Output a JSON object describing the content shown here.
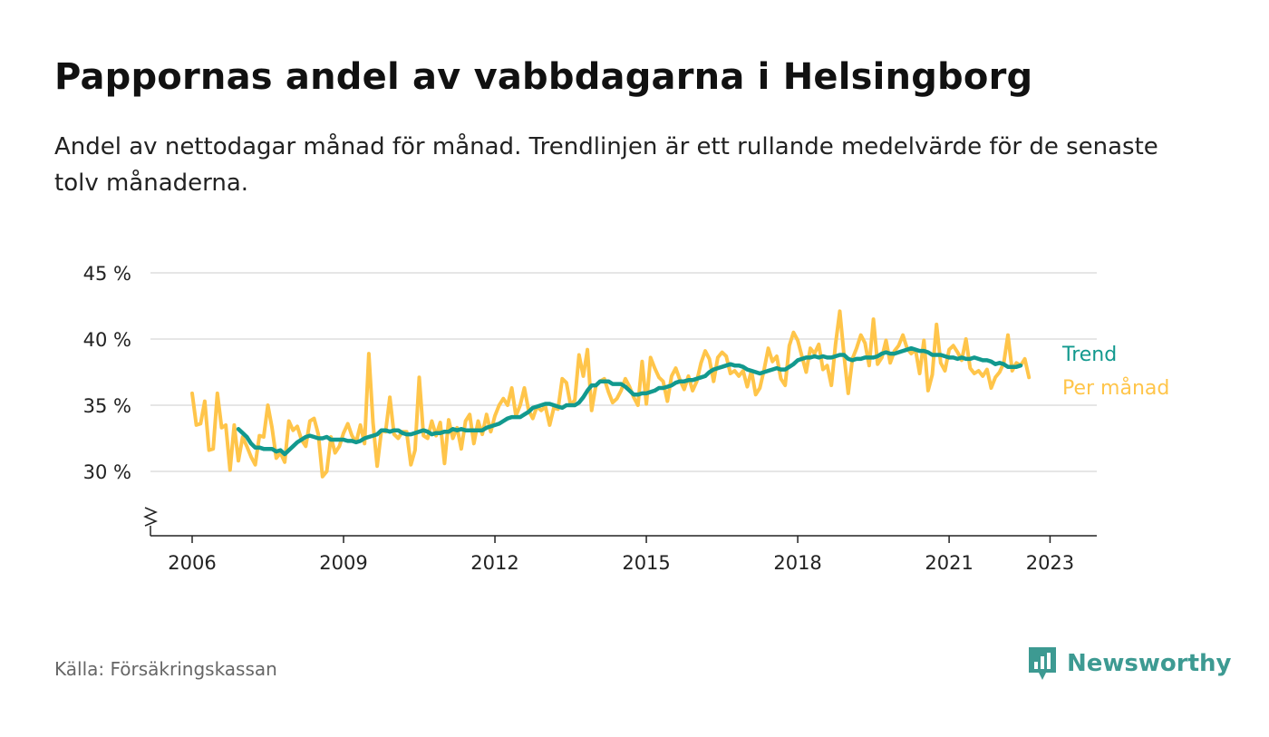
{
  "title": "Pappornas andel av vabbdagarna i Helsingborg",
  "subtitle": "Andel av nettodagar månad för månad. Trendlinjen är ett rullande medelvärde för de senaste tolv månaderna.",
  "source": "Källa: Försäkringskassan",
  "logo_text": "Newsworthy",
  "colors": {
    "trend": "#12998e",
    "monthly": "#ffc54a",
    "grid": "#dddddd",
    "axis": "#222222",
    "logo": "#3d9a92"
  },
  "chart_data": {
    "type": "line",
    "x_start": "2006-01",
    "x_end": "2023-05",
    "x_ticks": [
      "2006",
      "2009",
      "2012",
      "2015",
      "2018",
      "2021",
      "2023"
    ],
    "y_ticks": [
      "30 %",
      "35 %",
      "40 %",
      "45 %"
    ],
    "ylim": [
      25,
      45
    ],
    "y_axis_break": true,
    "grid": true,
    "legend": "right-end labels",
    "series": [
      {
        "name": "Per månad",
        "color": "#ffc54a",
        "values": [
          35.9,
          33.5,
          33.6,
          35.3,
          31.6,
          31.7,
          35.9,
          33.3,
          33.5,
          30.1,
          33.5,
          30.8,
          32.6,
          31.9,
          31.1,
          30.5,
          32.7,
          32.6,
          35.0,
          33.3,
          31.0,
          31.4,
          30.7,
          33.8,
          33.1,
          33.4,
          32.4,
          31.9,
          33.8,
          34.0,
          32.8,
          29.6,
          30.0,
          32.6,
          31.4,
          31.9,
          32.9,
          33.6,
          32.7,
          32.2,
          33.5,
          32.1,
          38.9,
          33.7,
          30.4,
          33.1,
          33.0,
          35.6,
          32.8,
          32.5,
          33.0,
          33.0,
          30.5,
          31.6,
          37.1,
          32.7,
          32.5,
          33.8,
          32.7,
          33.7,
          30.6,
          33.9,
          32.5,
          33.3,
          31.7,
          33.8,
          34.3,
          32.1,
          33.8,
          32.8,
          34.3,
          33.0,
          34.2,
          35.0,
          35.5,
          35.0,
          36.3,
          34.2,
          35.0,
          36.3,
          34.6,
          34.0,
          34.9,
          34.6,
          34.9,
          33.5,
          34.8,
          34.7,
          37.0,
          36.7,
          35.0,
          35.4,
          38.8,
          37.2,
          39.2,
          34.6,
          36.5,
          36.8,
          37.0,
          36.0,
          35.2,
          35.5,
          36.1,
          37.0,
          36.4,
          35.6,
          35.0,
          38.3,
          35.1,
          38.6,
          37.8,
          37.1,
          36.8,
          35.3,
          37.2,
          37.8,
          36.9,
          36.2,
          37.2,
          36.1,
          36.8,
          38.2,
          39.1,
          38.5,
          36.8,
          38.6,
          39.0,
          38.7,
          37.4,
          37.6,
          37.2,
          37.6,
          36.4,
          37.6,
          35.8,
          36.3,
          37.7,
          39.3,
          38.3,
          38.7,
          37.0,
          36.5,
          39.5,
          40.5,
          39.9,
          38.7,
          37.5,
          39.3,
          38.9,
          39.6,
          37.7,
          38.0,
          36.5,
          39.6,
          42.1,
          38.8,
          35.9,
          38.5,
          39.3,
          40.3,
          39.7,
          38.0,
          41.5,
          38.1,
          38.6,
          39.9,
          38.2,
          39.1,
          39.5,
          40.3,
          39.3,
          38.9,
          39.2,
          37.4,
          39.9,
          36.1,
          37.3,
          41.1,
          38.2,
          37.6,
          39.2,
          39.5,
          39.0,
          38.4,
          40.0,
          37.8,
          37.4,
          37.6,
          37.2,
          37.7,
          36.3,
          37.1,
          37.5,
          38.2,
          40.3,
          37.6,
          38.2,
          38.0,
          38.5,
          37.1
        ]
      },
      {
        "name": "Trend",
        "color": "#12998e",
        "values": [
          null,
          null,
          null,
          null,
          null,
          null,
          null,
          null,
          null,
          null,
          null,
          33.2,
          32.9,
          32.6,
          32.1,
          31.8,
          31.8,
          31.7,
          31.7,
          31.7,
          31.5,
          31.6,
          31.3,
          31.6,
          31.9,
          32.2,
          32.4,
          32.6,
          32.7,
          32.6,
          32.5,
          32.5,
          32.6,
          32.4,
          32.4,
          32.4,
          32.4,
          32.3,
          32.3,
          32.2,
          32.3,
          32.5,
          32.6,
          32.7,
          32.8,
          33.1,
          33.1,
          33.0,
          33.1,
          33.1,
          32.9,
          32.8,
          32.8,
          32.9,
          33.0,
          33.1,
          33.0,
          32.8,
          32.9,
          32.9,
          33.0,
          33.0,
          33.2,
          33.1,
          33.2,
          33.1,
          33.1,
          33.1,
          33.1,
          33.1,
          33.3,
          33.4,
          33.5,
          33.6,
          33.8,
          34.0,
          34.1,
          34.1,
          34.1,
          34.3,
          34.5,
          34.8,
          34.9,
          35.0,
          35.1,
          35.1,
          35.0,
          34.9,
          34.8,
          35.0,
          35.0,
          35.0,
          35.2,
          35.6,
          36.1,
          36.5,
          36.5,
          36.8,
          36.8,
          36.8,
          36.6,
          36.6,
          36.6,
          36.4,
          36.1,
          35.8,
          35.8,
          35.9,
          35.9,
          36.0,
          36.1,
          36.3,
          36.3,
          36.4,
          36.5,
          36.7,
          36.8,
          36.8,
          36.9,
          36.9,
          37.0,
          37.1,
          37.2,
          37.5,
          37.7,
          37.8,
          37.9,
          38.0,
          38.1,
          38.0,
          38.0,
          37.9,
          37.7,
          37.6,
          37.5,
          37.4,
          37.5,
          37.6,
          37.7,
          37.8,
          37.7,
          37.7,
          37.9,
          38.1,
          38.4,
          38.5,
          38.6,
          38.6,
          38.7,
          38.6,
          38.7,
          38.6,
          38.6,
          38.7,
          38.8,
          38.8,
          38.5,
          38.4,
          38.5,
          38.5,
          38.6,
          38.6,
          38.6,
          38.7,
          38.9,
          39.0,
          38.9,
          38.9,
          39.0,
          39.1,
          39.2,
          39.3,
          39.2,
          39.1,
          39.1,
          39.0,
          38.8,
          38.8,
          38.8,
          38.7,
          38.6,
          38.6,
          38.5,
          38.6,
          38.5,
          38.5,
          38.6,
          38.5,
          38.4,
          38.4,
          38.3,
          38.1,
          38.2,
          38.1,
          37.9,
          37.9,
          37.9,
          38.0
        ]
      }
    ]
  }
}
